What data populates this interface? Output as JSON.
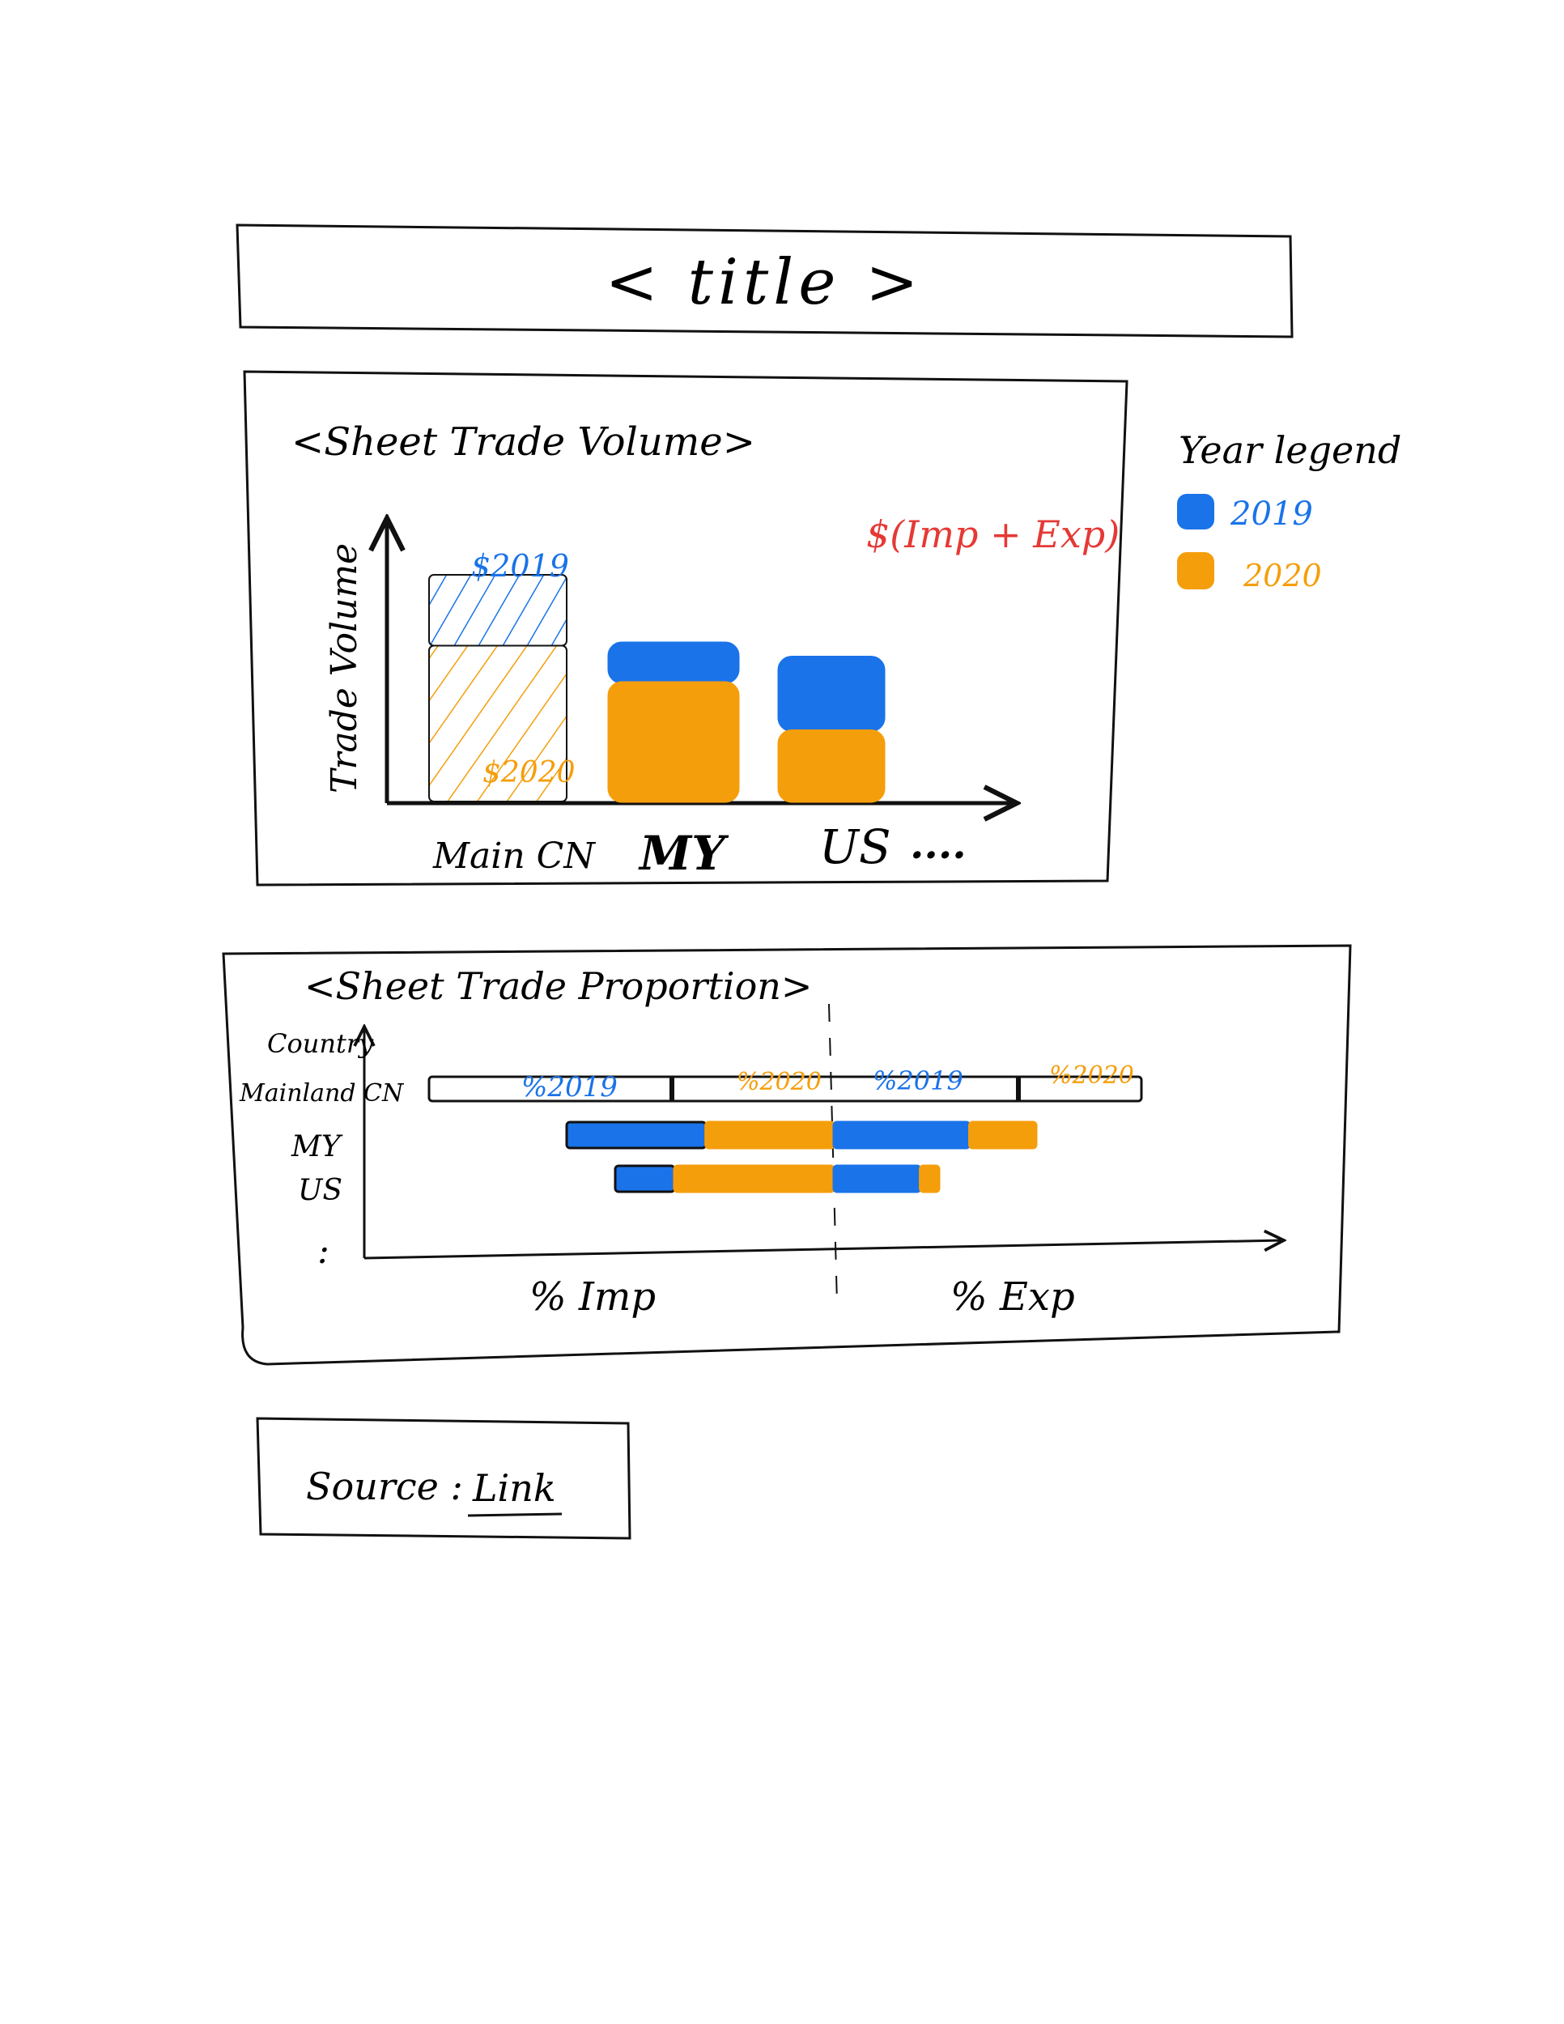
{
  "title": "< title >",
  "colors": {
    "series_2019": "#1a73e8",
    "series_2020": "#f59e0b",
    "annotation": "#e53935",
    "ink": "#111111"
  },
  "legend": {
    "title": "Year legend",
    "items": [
      {
        "label": "2019",
        "color": "#1a73e8"
      },
      {
        "label": "2020",
        "color": "#f59e0b"
      }
    ]
  },
  "volume_sheet": {
    "title": "<Sheet Trade Volume>",
    "ylabel": "Trade Volume",
    "annotation": "$(Imp + Exp)",
    "bar_labels": {
      "v2019": "$2019",
      "v2020": "$2020"
    },
    "categories": [
      "Main CN",
      "MY",
      "US",
      "...."
    ]
  },
  "proportion_sheet": {
    "title": "<Sheet Trade Proportion>",
    "ylabel": "Country",
    "rows": [
      "Mainland CN",
      "MY",
      "US",
      ":"
    ],
    "seg_labels": [
      "%2019",
      "%2020",
      "%2019",
      "%2020"
    ],
    "xlabel_left": "% Imp",
    "xlabel_right": "% Exp"
  },
  "source": {
    "label": "Source :",
    "link": "Link"
  },
  "chart_data": [
    {
      "type": "bar",
      "title": "<Sheet Trade Volume>",
      "ylabel": "Trade Volume",
      "xlabel": "",
      "categories": [
        "Main CN",
        "MY",
        "US"
      ],
      "series": [
        {
          "name": "2019",
          "values": [
            0.8,
            0.56,
            0.51
          ]
        },
        {
          "name": "2020",
          "values": [
            0.55,
            0.42,
            0.25
          ]
        }
      ],
      "ylim": [
        0,
        1
      ],
      "legend": "right"
    },
    {
      "type": "bar",
      "title": "<Sheet Trade Proportion>",
      "ylabel": "Country",
      "categories": [
        "Mainland CN",
        "MY",
        "US"
      ],
      "series": [
        {
          "name": "% Imp 2019",
          "values": [
            0.6,
            0.52,
            0.27
          ]
        },
        {
          "name": "% Imp 2020",
          "values": [
            0.4,
            0.48,
            0.73
          ]
        },
        {
          "name": "% Exp 2019",
          "values": [
            0.6,
            0.67,
            0.82
          ]
        },
        {
          "name": "% Exp 2020",
          "values": [
            0.4,
            0.33,
            0.18
          ]
        }
      ],
      "legend": "right"
    }
  ]
}
